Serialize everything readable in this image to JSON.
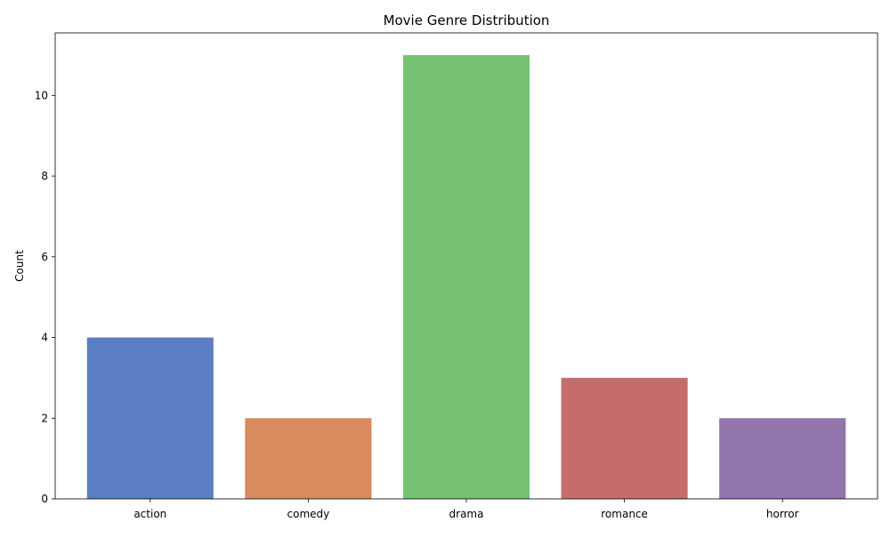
{
  "chart_data": {
    "type": "bar",
    "title": "Movie Genre Distribution",
    "xlabel": "",
    "ylabel": "Count",
    "categories": [
      "action",
      "comedy",
      "drama",
      "romance",
      "horror"
    ],
    "values": [
      4,
      2,
      11,
      3,
      2
    ],
    "colors": [
      "#5b7dc1",
      "#d98a5e",
      "#76c172",
      "#c66d6c",
      "#9275ad"
    ],
    "ylim": [
      0,
      11.55
    ],
    "yticks": [
      0,
      2,
      4,
      6,
      8,
      10
    ],
    "grid": false,
    "legend": "none"
  }
}
